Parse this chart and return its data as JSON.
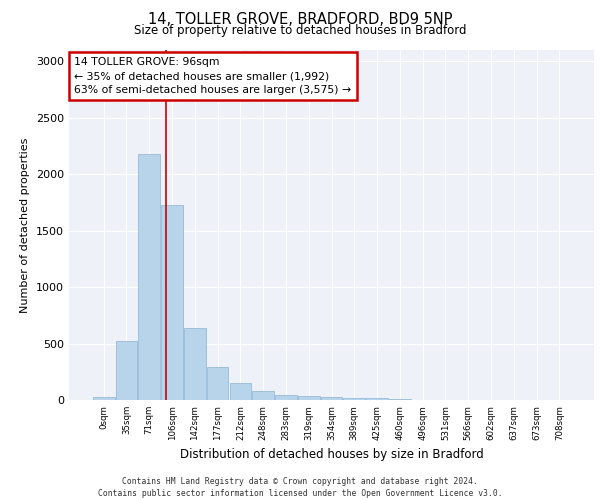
{
  "title1": "14, TOLLER GROVE, BRADFORD, BD9 5NP",
  "title2": "Size of property relative to detached houses in Bradford",
  "xlabel": "Distribution of detached houses by size in Bradford",
  "ylabel": "Number of detached properties",
  "categories": [
    "0sqm",
    "35sqm",
    "71sqm",
    "106sqm",
    "142sqm",
    "177sqm",
    "212sqm",
    "248sqm",
    "283sqm",
    "319sqm",
    "354sqm",
    "389sqm",
    "425sqm",
    "460sqm",
    "496sqm",
    "531sqm",
    "566sqm",
    "602sqm",
    "637sqm",
    "673sqm",
    "708sqm"
  ],
  "values": [
    25,
    520,
    2180,
    1730,
    640,
    290,
    155,
    80,
    45,
    35,
    25,
    20,
    15,
    5,
    0,
    0,
    0,
    0,
    0,
    0,
    0
  ],
  "bar_color": "#b8d4ea",
  "bar_edge_color": "#8ab4d4",
  "vline_color": "#cc0000",
  "annotation_text": "14 TOLLER GROVE: 96sqm\n← 35% of detached houses are smaller (1,992)\n63% of semi-detached houses are larger (3,575) →",
  "annotation_box_color": "white",
  "annotation_box_edge_color": "#cc0000",
  "ylim": [
    0,
    3100
  ],
  "yticks": [
    0,
    500,
    1000,
    1500,
    2000,
    2500,
    3000
  ],
  "footer1": "Contains HM Land Registry data © Crown copyright and database right 2024.",
  "footer2": "Contains public sector information licensed under the Open Government Licence v3.0.",
  "background_color": "#eef2f8",
  "grid_color": "#ffffff"
}
